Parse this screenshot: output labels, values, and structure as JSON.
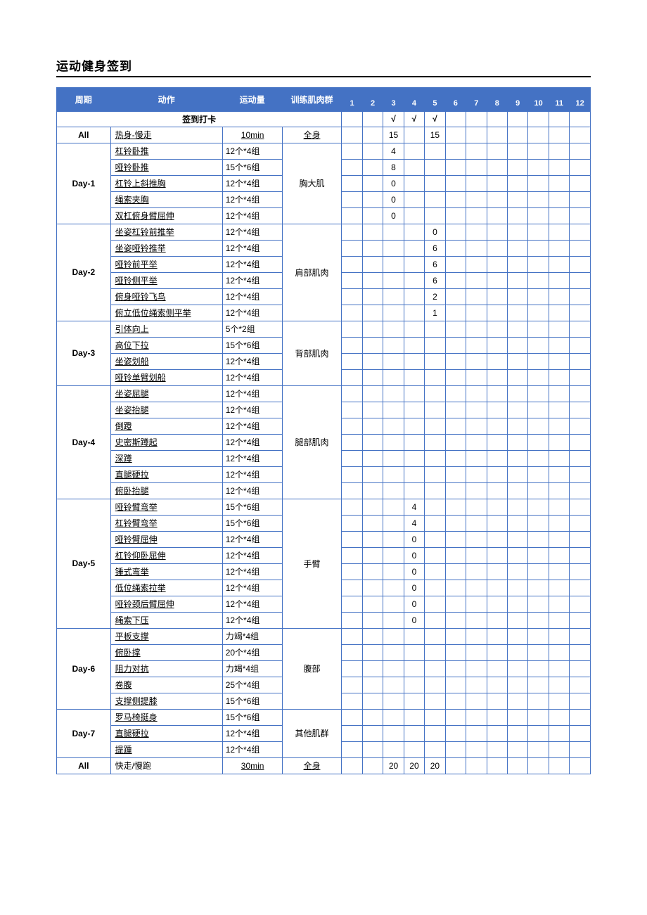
{
  "title": "运动健身签到",
  "headers": {
    "period": "周期",
    "exercise": "动作",
    "volume": "运动量",
    "muscle": "训练肌肉群",
    "days": [
      "1",
      "2",
      "3",
      "4",
      "5",
      "6",
      "7",
      "8",
      "9",
      "10",
      "11",
      "12"
    ]
  },
  "signin_label": "签到打卡",
  "signin_marks": {
    "3": "√",
    "4": "√",
    "5": "√"
  },
  "rows": [
    {
      "period": "All",
      "exercise": "热身-慢走",
      "volume": "10min",
      "muscle": "全身",
      "span": 1,
      "underline": true,
      "center_vol": true,
      "cells": {
        "3": "15",
        "5": "15"
      }
    },
    {
      "period": "Day-1",
      "exercise": "杠铃卧推",
      "volume": "12个*4组",
      "muscle": "胸大肌",
      "span": 5,
      "cells": {
        "3": "4"
      }
    },
    {
      "exercise": "哑铃卧推",
      "volume": "15个*6组",
      "cells": {
        "3": "8"
      }
    },
    {
      "exercise": "杠铃上斜推胸",
      "volume": "12个*4组",
      "cells": {
        "3": "0"
      }
    },
    {
      "exercise": "绳索夹胸",
      "volume": "12个*4组",
      "cells": {
        "3": "0"
      }
    },
    {
      "exercise": "双杠俯身臂屈伸",
      "volume": "12个*4组",
      "cells": {
        "3": "0"
      }
    },
    {
      "period": "Day-2",
      "exercise": "坐姿杠铃前推举",
      "volume": "12个*4组",
      "muscle": "肩部肌肉",
      "span": 6,
      "cells": {
        "5": "0"
      }
    },
    {
      "exercise": "坐姿哑铃推举",
      "volume": "12个*4组",
      "cells": {
        "5": "6"
      }
    },
    {
      "exercise": "哑铃前平举",
      "volume": "12个*4组",
      "cells": {
        "5": "6"
      }
    },
    {
      "exercise": "哑铃侧平举",
      "volume": "12个*4组",
      "cells": {
        "5": "6"
      }
    },
    {
      "exercise": "俯身哑铃飞鸟",
      "volume": "12个*4组",
      "cells": {
        "5": "2"
      }
    },
    {
      "exercise": "俯立低位绳索侧平举",
      "volume": "12个*4组",
      "cells": {
        "5": "1"
      }
    },
    {
      "period": "Day-3",
      "exercise": "引体向上",
      "volume": "5个*2组",
      "muscle": "背部肌肉",
      "span": 4,
      "cells": {}
    },
    {
      "exercise": "高位下拉",
      "volume": "15个*6组",
      "cells": {}
    },
    {
      "exercise": "坐姿划船",
      "volume": "12个*4组",
      "cells": {}
    },
    {
      "exercise": "哑铃单臂划船",
      "volume": "12个*4组",
      "cells": {}
    },
    {
      "period": "Day-4",
      "exercise": "坐姿屈腿",
      "volume": "12个*4组",
      "muscle": "腿部肌肉",
      "span": 7,
      "cells": {}
    },
    {
      "exercise": "坐姿抬腿",
      "volume": "12个*4组",
      "cells": {}
    },
    {
      "exercise": "倒蹬",
      "volume": "12个*4组",
      "cells": {}
    },
    {
      "exercise": "史密斯蹲起",
      "volume": "12个*4组",
      "cells": {}
    },
    {
      "exercise": "深蹲",
      "volume": "12个*4组",
      "cells": {}
    },
    {
      "exercise": "直腿硬拉",
      "volume": "12个*4组",
      "cells": {}
    },
    {
      "exercise": "俯卧抬腿",
      "volume": "12个*4组",
      "cells": {}
    },
    {
      "period": "Day-5",
      "exercise": "哑铃臂弯举",
      "volume": "15个*6组",
      "muscle": "手臂",
      "span": 8,
      "cells": {
        "4": "4"
      }
    },
    {
      "exercise": "杠铃臂弯举",
      "volume": "15个*6组",
      "cells": {
        "4": "4"
      }
    },
    {
      "exercise": "哑铃臂屈伸",
      "volume": "12个*4组",
      "cells": {
        "4": "0"
      }
    },
    {
      "exercise": "杠铃仰卧屈伸",
      "volume": "12个*4组",
      "cells": {
        "4": "0"
      }
    },
    {
      "exercise": "锤式弯举",
      "volume": "12个*4组",
      "cells": {
        "4": "0"
      }
    },
    {
      "exercise": "低位绳索拉举",
      "volume": "12个*4组",
      "cells": {
        "4": "0"
      }
    },
    {
      "exercise": "哑铃颈后臂屈伸",
      "volume": "12个*4组",
      "cells": {
        "4": "0"
      }
    },
    {
      "exercise": "绳索下压",
      "volume": "12个*4组",
      "cells": {
        "4": "0"
      }
    },
    {
      "period": "Day-6",
      "exercise": "平板支撑",
      "volume": "力竭*4组",
      "muscle": "腹部",
      "span": 5,
      "cells": {}
    },
    {
      "exercise": "俯卧撑",
      "volume": "20个*4组",
      "cells": {}
    },
    {
      "exercise": "阻力对抗",
      "volume": "力竭*4组",
      "cells": {}
    },
    {
      "exercise": "卷腹",
      "volume": "25个*4组",
      "cells": {}
    },
    {
      "exercise": "支撑侧提膝",
      "volume": "15个*6组",
      "cells": {}
    },
    {
      "period": "Day-7",
      "exercise": "罗马椅挺身",
      "volume": "15个*6组",
      "muscle": "其他肌群",
      "span": 3,
      "cells": {}
    },
    {
      "exercise": "直腿硬拉",
      "volume": "12个*4组",
      "cells": {}
    },
    {
      "exercise": "提踵",
      "volume": "12个*4组",
      "cells": {}
    },
    {
      "period": "All",
      "exercise": "快走/慢跑",
      "volume": "30min",
      "muscle": "全身",
      "span": 1,
      "underline": true,
      "center_vol": true,
      "no_under_ex": true,
      "cells": {
        "3": "20",
        "4": "20",
        "5": "20"
      }
    }
  ],
  "colors": {
    "primary": "#4472c4",
    "text": "#000000",
    "background": "#ffffff"
  }
}
